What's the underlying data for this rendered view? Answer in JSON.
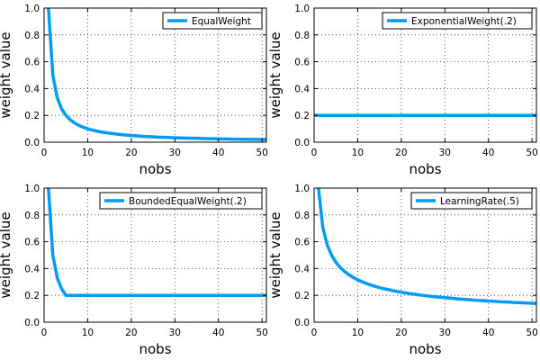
{
  "chart_data": [
    {
      "type": "line",
      "xlabel": "nobs",
      "ylabel": "weight value",
      "xlim": [
        0,
        51
      ],
      "ylim": [
        0,
        1
      ],
      "xticks": [
        "0",
        "10",
        "20",
        "30",
        "40",
        "50"
      ],
      "yticks": [
        "0.0",
        "0.2",
        "0.4",
        "0.6",
        "0.8",
        "1.0"
      ],
      "grid": true,
      "legend_position": "top-right",
      "series": [
        {
          "name": "EqualWeight",
          "color": "#009af9",
          "x": [
            1,
            2,
            3,
            4,
            5,
            6,
            7,
            8,
            9,
            10,
            11,
            12,
            13,
            14,
            15,
            16,
            17,
            18,
            19,
            20,
            21,
            22,
            23,
            24,
            25,
            26,
            27,
            28,
            29,
            30,
            31,
            32,
            33,
            34,
            35,
            36,
            37,
            38,
            39,
            40,
            41,
            42,
            43,
            44,
            45,
            46,
            47,
            48,
            49,
            50,
            51
          ],
          "y": [
            1.0,
            0.5,
            0.333,
            0.25,
            0.2,
            0.167,
            0.143,
            0.125,
            0.111,
            0.1,
            0.091,
            0.083,
            0.077,
            0.071,
            0.067,
            0.063,
            0.059,
            0.056,
            0.053,
            0.05,
            0.048,
            0.045,
            0.043,
            0.042,
            0.04,
            0.038,
            0.037,
            0.036,
            0.034,
            0.033,
            0.032,
            0.031,
            0.03,
            0.029,
            0.029,
            0.028,
            0.027,
            0.026,
            0.026,
            0.025,
            0.024,
            0.024,
            0.023,
            0.023,
            0.022,
            0.022,
            0.021,
            0.021,
            0.02,
            0.02,
            0.02
          ]
        }
      ]
    },
    {
      "type": "line",
      "xlabel": "nobs",
      "ylabel": "weight value",
      "xlim": [
        0,
        51
      ],
      "ylim": [
        0,
        1
      ],
      "xticks": [
        "0",
        "10",
        "20",
        "30",
        "40",
        "50"
      ],
      "yticks": [
        "0.0",
        "0.2",
        "0.4",
        "0.6",
        "0.8",
        "1.0"
      ],
      "grid": true,
      "legend_position": "top-right",
      "series": [
        {
          "name": "ExponentialWeight(.2)",
          "color": "#009af9",
          "x": [
            0,
            51
          ],
          "y": [
            0.2,
            0.2
          ]
        }
      ]
    },
    {
      "type": "line",
      "xlabel": "nobs",
      "ylabel": "weight value",
      "xlim": [
        0,
        51
      ],
      "ylim": [
        0,
        1
      ],
      "xticks": [
        "0",
        "10",
        "20",
        "30",
        "40",
        "50"
      ],
      "yticks": [
        "0.0",
        "0.2",
        "0.4",
        "0.6",
        "0.8",
        "1.0"
      ],
      "grid": true,
      "legend_position": "top-right",
      "series": [
        {
          "name": "BoundedEqualWeight(.2)",
          "color": "#009af9",
          "x": [
            1,
            2,
            3,
            4,
            5,
            51
          ],
          "y": [
            1.0,
            0.5,
            0.333,
            0.25,
            0.2,
            0.2
          ]
        }
      ]
    },
    {
      "type": "line",
      "xlabel": "nobs",
      "ylabel": "weight value",
      "xlim": [
        0,
        51
      ],
      "ylim": [
        0,
        1
      ],
      "xticks": [
        "0",
        "10",
        "20",
        "30",
        "40",
        "50"
      ],
      "yticks": [
        "0.0",
        "0.2",
        "0.4",
        "0.6",
        "0.8",
        "1.0"
      ],
      "grid": true,
      "legend_position": "top-right",
      "series": [
        {
          "name": "LearningRate(.5)",
          "color": "#009af9",
          "x": [
            1,
            2,
            3,
            4,
            5,
            6,
            7,
            8,
            9,
            10,
            11,
            12,
            13,
            14,
            15,
            16,
            17,
            18,
            19,
            20,
            21,
            22,
            23,
            24,
            25,
            26,
            27,
            28,
            29,
            30,
            31,
            32,
            33,
            34,
            35,
            36,
            37,
            38,
            39,
            40,
            41,
            42,
            43,
            44,
            45,
            46,
            47,
            48,
            49,
            50,
            51
          ],
          "y": [
            1.0,
            0.707,
            0.577,
            0.5,
            0.447,
            0.408,
            0.378,
            0.354,
            0.333,
            0.316,
            0.302,
            0.289,
            0.277,
            0.267,
            0.258,
            0.25,
            0.243,
            0.236,
            0.229,
            0.224,
            0.218,
            0.213,
            0.209,
            0.204,
            0.2,
            0.196,
            0.192,
            0.189,
            0.186,
            0.183,
            0.18,
            0.177,
            0.174,
            0.171,
            0.169,
            0.167,
            0.164,
            0.162,
            0.16,
            0.158,
            0.156,
            0.154,
            0.152,
            0.151,
            0.149,
            0.147,
            0.146,
            0.144,
            0.143,
            0.141,
            0.14
          ]
        }
      ]
    }
  ]
}
